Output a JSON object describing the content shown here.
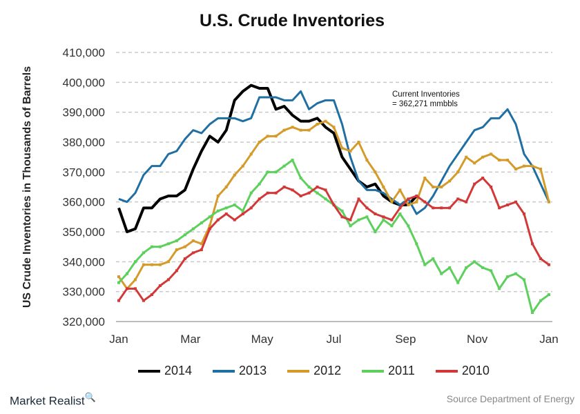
{
  "chart_data": {
    "type": "line",
    "title": "U.S. Crude Inventories",
    "ylabel": "US Crude Inventories in Thousands of Barrels",
    "xlabel": "",
    "ylim": [
      320000,
      410000
    ],
    "yticks": [
      "410,000",
      "400,000",
      "390,000",
      "380,000",
      "370,000",
      "360,000",
      "350,000",
      "340,000",
      "330,000",
      "320,000"
    ],
    "xticks": [
      "Jan",
      "Mar",
      "May",
      "Jul",
      "Sep",
      "Nov",
      "Jan"
    ],
    "x_unit": "week of year",
    "grid": "horizontal dashed",
    "legend": "bottom",
    "annotation": [
      "Current Inventories",
      "= 362,271 mmbbls"
    ],
    "series": [
      {
        "name": "2014",
        "color": "#000000",
        "values": [
          358,
          350,
          351,
          358,
          358,
          361,
          362,
          362,
          364,
          371,
          377,
          382,
          380,
          384,
          394,
          397,
          399,
          398,
          398,
          391,
          392,
          389,
          387,
          387,
          388,
          385,
          383,
          375,
          371,
          367,
          365,
          366,
          362,
          360,
          359,
          359,
          362
        ]
      },
      {
        "name": "2013",
        "color": "#1f6fa3",
        "values": [
          361,
          360,
          363,
          369,
          372,
          372,
          376,
          377,
          381,
          384,
          383,
          386,
          388,
          388,
          388,
          387,
          388,
          395,
          395,
          395,
          394,
          394,
          397,
          391,
          393,
          394,
          394,
          386,
          375,
          367,
          364,
          364,
          363,
          361,
          359,
          361,
          356,
          358,
          362,
          367,
          372,
          376,
          380,
          384,
          385,
          388,
          388,
          391,
          386,
          376,
          372,
          366,
          360
        ]
      },
      {
        "name": "2012",
        "color": "#d49a2a",
        "values": [
          335,
          331,
          334,
          339,
          339,
          339,
          340,
          344,
          345,
          347,
          346,
          352,
          362,
          365,
          369,
          372,
          376,
          380,
          382,
          382,
          384,
          385,
          384,
          384,
          386,
          387,
          385,
          378,
          377,
          380,
          374,
          370,
          365,
          360,
          364,
          359,
          360,
          368,
          365,
          365,
          367,
          370,
          375,
          373,
          375,
          376,
          374,
          374,
          371,
          372,
          372,
          371,
          360
        ]
      },
      {
        "name": "2011",
        "color": "#5ccf5c",
        "values": [
          333,
          336,
          340,
          343,
          345,
          345,
          346,
          347,
          349,
          351,
          353,
          355,
          357,
          358,
          359,
          357,
          363,
          366,
          370,
          370,
          372,
          374,
          368,
          365,
          363,
          361,
          359,
          357,
          352,
          354,
          355,
          350,
          354,
          352,
          356,
          352,
          346,
          339,
          341,
          336,
          338,
          333,
          338,
          340,
          338,
          337,
          331,
          335,
          336,
          334,
          323,
          327,
          329
        ]
      },
      {
        "name": "2010",
        "color": "#d23838",
        "values": [
          327,
          331,
          331,
          327,
          329,
          332,
          334,
          337,
          341,
          343,
          344,
          351,
          354,
          356,
          354,
          356,
          358,
          361,
          363,
          363,
          365,
          364,
          362,
          363,
          365,
          364,
          359,
          355,
          354,
          361,
          358,
          356,
          355,
          354,
          358,
          361,
          362,
          360,
          358,
          358,
          358,
          361,
          360,
          366,
          368,
          365,
          358,
          359,
          360,
          356,
          346,
          341,
          339
        ]
      }
    ],
    "value_multiplier": 1000
  },
  "footer": {
    "brand": "Market Realist",
    "source": "Source Department of Energy"
  }
}
